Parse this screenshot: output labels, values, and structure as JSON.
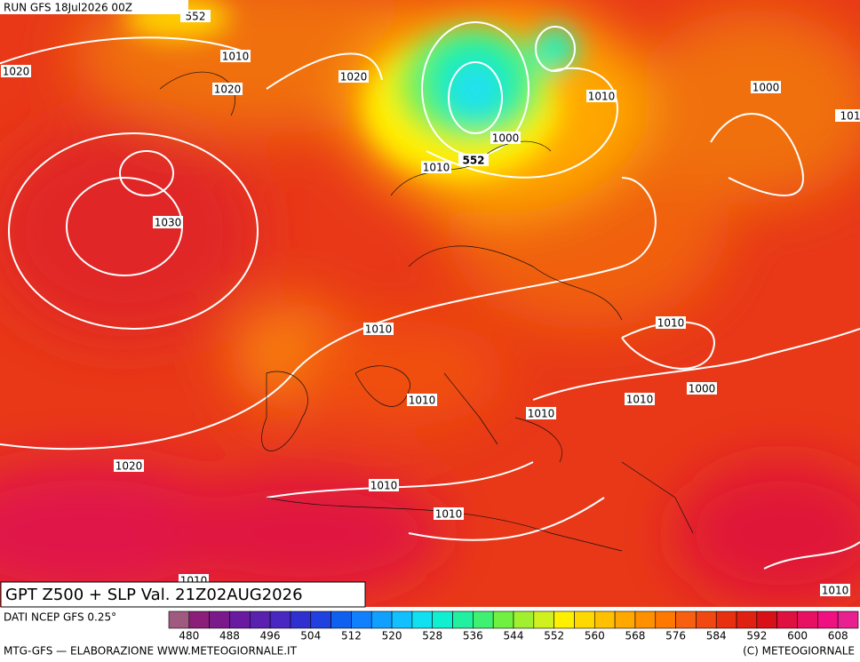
{
  "header": {
    "run": "RUN GFS 18Jul2026 00Z"
  },
  "map": {
    "contour_labels": [
      "552",
      "1010",
      "1020",
      "1020",
      "1020",
      "1010",
      "1000",
      "101",
      "1000",
      "1010",
      "552",
      "1030",
      "1010",
      "1010",
      "1010",
      "1010",
      "1000",
      "1010",
      "1020",
      "1010",
      "1010",
      "1010",
      "1010"
    ]
  },
  "title": "GPT Z500 + SLP Val. 21Z02AUG2026",
  "source": "DATI NCEP GFS 0.25°",
  "colorbar": {
    "colors": [
      "#a05a80",
      "#8a1e78",
      "#7a1a8a",
      "#6a1aa0",
      "#5a20b0",
      "#4828c0",
      "#3030d0",
      "#2040e0",
      "#1060f0",
      "#1080ff",
      "#10a0ff",
      "#10c0ff",
      "#10e0f0",
      "#10f0d0",
      "#20f0a0",
      "#40f070",
      "#70f040",
      "#a0f030",
      "#d0f020",
      "#fff000",
      "#ffd800",
      "#ffc000",
      "#ffa800",
      "#ff9000",
      "#ff7800",
      "#f86010",
      "#f04810",
      "#e83010",
      "#e02010",
      "#d81018",
      "#e01040",
      "#e81060",
      "#f01080",
      "#e82090"
    ],
    "ticks": [
      "480",
      "488",
      "496",
      "504",
      "512",
      "520",
      "528",
      "536",
      "544",
      "552",
      "560",
      "568",
      "576",
      "584",
      "592",
      "600",
      "608"
    ]
  },
  "footer": {
    "left": "MTG-GFS — ELABORAZIONE WWW.METEOGIORNALE.IT",
    "right": "(C) METEOGIORNALE"
  }
}
